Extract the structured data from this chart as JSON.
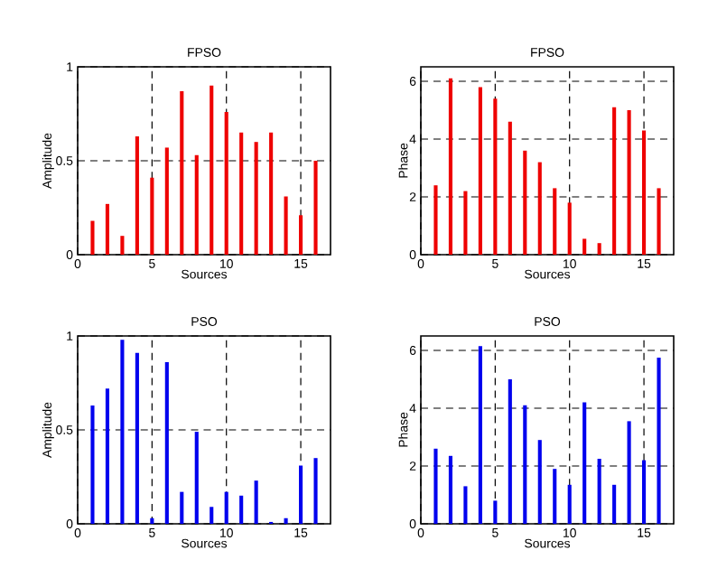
{
  "chart_data": [
    {
      "type": "bar",
      "title": "FPSO",
      "xlabel": "Sources",
      "ylabel": "Amplitude",
      "x": [
        1,
        2,
        3,
        4,
        5,
        6,
        7,
        8,
        9,
        10,
        11,
        12,
        13,
        14,
        15,
        16
      ],
      "values": [
        0.18,
        0.27,
        0.1,
        0.63,
        0.41,
        0.57,
        0.87,
        0.53,
        0.9,
        0.76,
        0.65,
        0.6,
        0.65,
        0.31,
        0.21,
        0.5
      ],
      "color": "#ee0000",
      "xlim": [
        0,
        17
      ],
      "ylim": [
        0,
        1
      ],
      "xticks": [
        0,
        5,
        10,
        15
      ],
      "yticks": [
        0,
        0.5,
        1
      ],
      "grid": true
    },
    {
      "type": "bar",
      "title": "FPSO",
      "xlabel": "Sources",
      "ylabel": "Phase",
      "x": [
        1,
        2,
        3,
        4,
        5,
        6,
        7,
        8,
        9,
        10,
        11,
        12,
        13,
        14,
        15,
        16
      ],
      "values": [
        2.4,
        6.1,
        2.2,
        5.8,
        5.4,
        4.6,
        3.6,
        3.2,
        2.3,
        1.8,
        0.55,
        0.4,
        5.1,
        5.0,
        4.3,
        2.3
      ],
      "color": "#ee0000",
      "xlim": [
        0,
        17
      ],
      "ylim": [
        0,
        6.5
      ],
      "xticks": [
        0,
        5,
        10,
        15
      ],
      "yticks": [
        0,
        2,
        4,
        6
      ],
      "grid": true
    },
    {
      "type": "bar",
      "title": "PSO",
      "xlabel": "Sources",
      "ylabel": "Amplitude",
      "x": [
        1,
        2,
        3,
        4,
        5,
        6,
        7,
        8,
        9,
        10,
        11,
        12,
        13,
        14,
        15,
        16
      ],
      "values": [
        0.63,
        0.72,
        0.98,
        0.91,
        0.03,
        0.86,
        0.17,
        0.49,
        0.09,
        0.17,
        0.15,
        0.23,
        0.01,
        0.03,
        0.31,
        0.35
      ],
      "color": "#0000ee",
      "xlim": [
        0,
        17
      ],
      "ylim": [
        0,
        1
      ],
      "xticks": [
        0,
        5,
        10,
        15
      ],
      "yticks": [
        0,
        0.5,
        1
      ],
      "grid": true
    },
    {
      "type": "bar",
      "title": "PSO",
      "xlabel": "Sources",
      "ylabel": "Phase",
      "x": [
        1,
        2,
        3,
        4,
        5,
        6,
        7,
        8,
        9,
        10,
        11,
        12,
        13,
        14,
        15,
        16
      ],
      "values": [
        2.6,
        2.35,
        1.3,
        6.15,
        0.8,
        5.0,
        4.1,
        2.9,
        1.9,
        1.35,
        4.2,
        2.25,
        1.35,
        3.55,
        2.2,
        5.75
      ],
      "color": "#0000ee",
      "xlim": [
        0,
        17
      ],
      "ylim": [
        0,
        6.5
      ],
      "xticks": [
        0,
        5,
        10,
        15
      ],
      "yticks": [
        0,
        2,
        4,
        6
      ],
      "grid": true
    }
  ]
}
